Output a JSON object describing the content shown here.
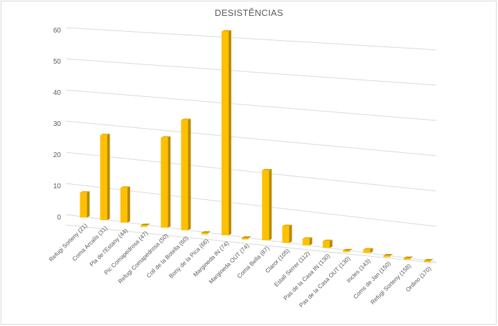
{
  "chart_data": {
    "type": "bar",
    "title": "DESISTÊNCIAS",
    "categories": [
      "Refugi Sorteny (21)",
      "Coma Arcalis (31)",
      "Pla de l'Estany (44)",
      "Pic Comapedrosa (47)",
      "Refugi Comapedrosa (50)",
      "Coll de la Botella (60)",
      "Bony de la Pica (66)",
      "Margineda IN (74)",
      "Margineda OUT (74)",
      "Coma Bella (87)",
      "Claror (105)",
      "Estall Serrer (112)",
      "Pas de la Casa IN (130)",
      "Pas de la Casa OUT (130)",
      "Incles (143)",
      "Coms de Jan (150)",
      "Refugi Sorteny (158)",
      "Ordino (170)"
    ],
    "values": [
      8,
      27,
      11,
      0,
      28,
      34,
      0,
      62,
      0,
      21,
      5,
      2,
      2,
      0,
      1,
      0,
      0,
      0
    ],
    "ylim": [
      0,
      60
    ],
    "yticks": [
      "0",
      "10",
      "20",
      "30",
      "40",
      "50",
      "60"
    ],
    "xlabel": "",
    "ylabel": "",
    "grid": true,
    "colors": {
      "front": "#ffc000",
      "side": "#b88a00",
      "top": "#e6ac00",
      "grid": "#d9d9d9"
    }
  }
}
